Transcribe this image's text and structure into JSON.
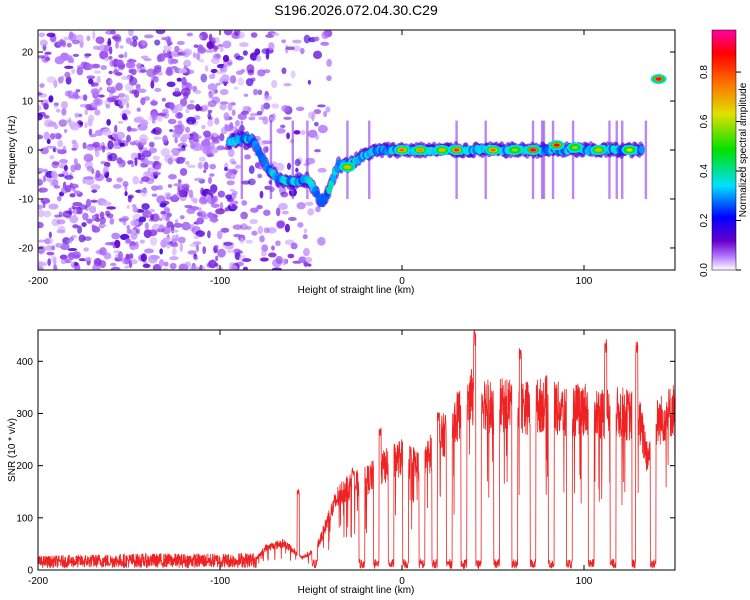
{
  "title": "S196.2026.072.04.30.C29",
  "chart_data": [
    {
      "type": "heatmap",
      "xlabel": "Height of straight line (km)",
      "ylabel": "Frequency (Hz)",
      "xlim": [
        -200,
        150
      ],
      "ylim": [
        -24.5,
        24.5
      ],
      "xticks": [
        -200,
        -100,
        0,
        100
      ],
      "yticks": [
        -20,
        -10,
        0,
        10,
        20
      ],
      "xtick_labels": [
        "-200",
        "-100",
        "0",
        "100"
      ],
      "ytick_labels": [
        "-20",
        "-10",
        "0",
        "10",
        "20"
      ],
      "colorbar": {
        "label": "Normalized spectral amplitude",
        "range": [
          0,
          0.97
        ],
        "ticks": [
          0,
          0.2,
          0.4,
          0.6,
          0.8
        ],
        "tick_labels": [
          "0.0",
          "0.2",
          "0.4",
          "0.6",
          "0.8"
        ],
        "colors": [
          "#ffffff",
          "#6600cc",
          "#0000ff",
          "#00e0ff",
          "#00e000",
          "#e0e000",
          "#ff7000",
          "#ff0000",
          "#ff00a0"
        ]
      },
      "ridge": [
        {
          "x": -95,
          "y": 1.5
        },
        {
          "x": -88,
          "y": 2.5
        },
        {
          "x": -82,
          "y": 2
        },
        {
          "x": -75,
          "y": -3
        },
        {
          "x": -68,
          "y": -6
        },
        {
          "x": -60,
          "y": -6.5
        },
        {
          "x": -52,
          "y": -6
        },
        {
          "x": -48,
          "y": -8
        },
        {
          "x": -44,
          "y": -11
        },
        {
          "x": -40,
          "y": -8
        },
        {
          "x": -35,
          "y": -3
        },
        {
          "x": -30,
          "y": -3
        },
        {
          "x": -25,
          "y": -2
        },
        {
          "x": -18,
          "y": -0.5
        },
        {
          "x": -10,
          "y": 0
        },
        {
          "x": 0,
          "y": 0
        },
        {
          "x": 20,
          "y": 0
        },
        {
          "x": 40,
          "y": 0
        },
        {
          "x": 60,
          "y": 0
        },
        {
          "x": 80,
          "y": 0
        },
        {
          "x": 100,
          "y": 0
        },
        {
          "x": 120,
          "y": 0
        },
        {
          "x": 132,
          "y": 0
        }
      ],
      "ridge_peaks": [
        {
          "x": -30,
          "y": -3.5,
          "amp": 0.7
        },
        {
          "x": 0,
          "y": 0,
          "amp": 0.8
        },
        {
          "x": 10,
          "y": 0,
          "amp": 0.75
        },
        {
          "x": 22,
          "y": 0,
          "amp": 0.7
        },
        {
          "x": 30,
          "y": 0,
          "amp": 0.85
        },
        {
          "x": 50,
          "y": 0,
          "amp": 0.8
        },
        {
          "x": 62,
          "y": 0,
          "amp": 0.6
        },
        {
          "x": 72,
          "y": 0,
          "amp": 0.95
        },
        {
          "x": 85,
          "y": 1,
          "amp": 0.9
        },
        {
          "x": 95,
          "y": 0.5,
          "amp": 0.6
        },
        {
          "x": 108,
          "y": 0,
          "amp": 0.7
        },
        {
          "x": 125,
          "y": 0,
          "amp": 0.65
        },
        {
          "x": 141,
          "y": 14.5,
          "amp": 0.95
        }
      ]
    },
    {
      "type": "line",
      "xlabel": "Height of straight line (km)",
      "ylabel": "SNR (10 * v/v)",
      "xlim": [
        -200,
        150
      ],
      "ylim": [
        0,
        460
      ],
      "xticks": [
        -200,
        -100,
        0,
        100
      ],
      "yticks": [
        0,
        100,
        200,
        300,
        400
      ],
      "xtick_labels": [
        "-200",
        "-100",
        "0",
        "100"
      ],
      "ytick_labels": [
        "0",
        "100",
        "200",
        "300",
        "400"
      ],
      "color": "#ee2222",
      "envelope": [
        {
          "x": -200,
          "y": 15
        },
        {
          "x": -150,
          "y": 20
        },
        {
          "x": -100,
          "y": 20
        },
        {
          "x": -80,
          "y": 22
        },
        {
          "x": -75,
          "y": 45
        },
        {
          "x": -65,
          "y": 55
        },
        {
          "x": -60,
          "y": 40
        },
        {
          "x": -55,
          "y": 25
        },
        {
          "x": -50,
          "y": 35
        },
        {
          "x": -45,
          "y": 60
        },
        {
          "x": -40,
          "y": 110
        },
        {
          "x": -35,
          "y": 150
        },
        {
          "x": -30,
          "y": 170
        },
        {
          "x": -20,
          "y": 180
        },
        {
          "x": -10,
          "y": 210
        },
        {
          "x": 0,
          "y": 230
        },
        {
          "x": 10,
          "y": 210
        },
        {
          "x": 20,
          "y": 260
        },
        {
          "x": 30,
          "y": 310
        },
        {
          "x": 40,
          "y": 360
        },
        {
          "x": 50,
          "y": 330
        },
        {
          "x": 60,
          "y": 340
        },
        {
          "x": 70,
          "y": 330
        },
        {
          "x": 80,
          "y": 340
        },
        {
          "x": 90,
          "y": 320
        },
        {
          "x": 100,
          "y": 330
        },
        {
          "x": 110,
          "y": 320
        },
        {
          "x": 120,
          "y": 320
        },
        {
          "x": 130,
          "y": 310
        },
        {
          "x": 135,
          "y": 230
        },
        {
          "x": 140,
          "y": 300
        },
        {
          "x": 150,
          "y": 330
        }
      ],
      "dropouts": [
        -48,
        -22,
        -14,
        -6,
        2,
        11,
        18,
        26,
        34,
        42,
        52,
        62,
        72,
        82,
        92,
        104,
        116,
        128,
        138
      ],
      "spikes": [
        {
          "x": -57,
          "y": 155
        },
        {
          "x": -27,
          "y": 195
        },
        {
          "x": -12,
          "y": 275
        },
        {
          "x": 20,
          "y": 305
        },
        {
          "x": 40,
          "y": 460
        },
        {
          "x": 65,
          "y": 430
        },
        {
          "x": 112,
          "y": 445
        },
        {
          "x": 129,
          "y": 440
        }
      ]
    }
  ]
}
